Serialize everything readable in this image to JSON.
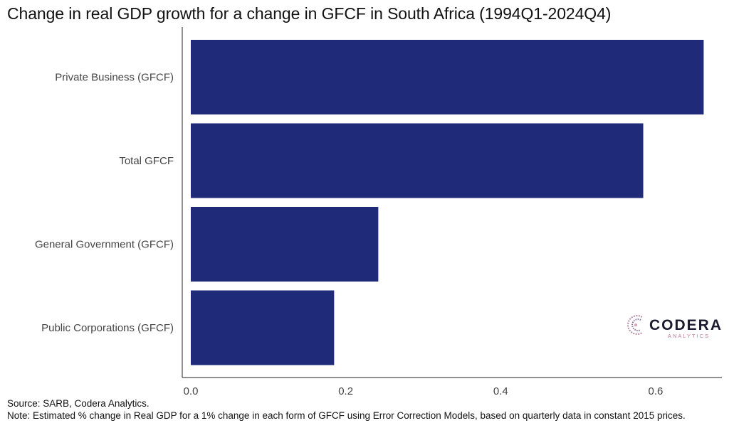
{
  "chart_data": {
    "type": "bar",
    "orientation": "horizontal",
    "title": "Change in real GDP growth for a change in GFCF in South Africa (1994Q1-2024Q4)",
    "categories": [
      "Private Business (GFCF)",
      "Total GFCF",
      "General Government (GFCF)",
      "Public Corporations (GFCF)"
    ],
    "values": [
      0.662,
      0.584,
      0.242,
      0.185
    ],
    "xlim": [
      0,
      0.6855
    ],
    "xticks": [
      "0.0",
      "0.2",
      "0.4",
      "0.6"
    ],
    "xtick_values": [
      0,
      0.2,
      0.4,
      0.6
    ],
    "bar_color": "#1f2a78",
    "grid": false
  },
  "footer": {
    "source": "Source: SARB, Codera Analytics.",
    "note": "Note: Estimated % change in Real GDP for a 1% change in each form of GFCF using Error Correction Models, based on quarterly data in constant 2015 prices."
  },
  "logo": {
    "name": "CODERA",
    "sub": "ANALYTICS"
  }
}
